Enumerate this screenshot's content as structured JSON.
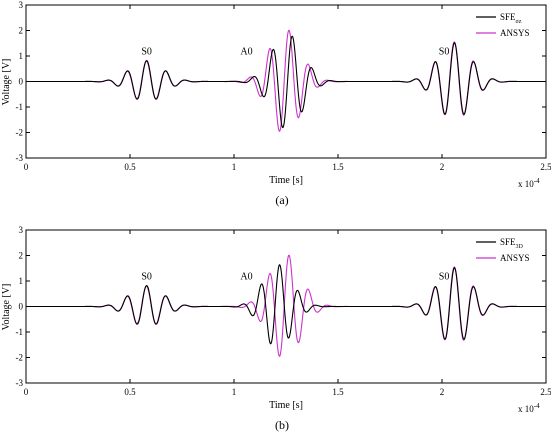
{
  "figure": {
    "panels": [
      {
        "caption": "(a)"
      },
      {
        "caption": "(b)"
      }
    ]
  },
  "chart_data": [
    {
      "type": "line",
      "panel": "(a)",
      "xlabel": "Time [s]",
      "ylabel": "Voltage [V]",
      "x_multiplier_label": "x 10",
      "x_multiplier_exp": "-4",
      "xlim": [
        0,
        2.5
      ],
      "ylim": [
        -3,
        3
      ],
      "xticks": [
        "0",
        "0.5",
        "1",
        "1.5",
        "2",
        "2.5"
      ],
      "yticks": [
        "-3",
        "-2",
        "-1",
        "0",
        "1",
        "2",
        "3"
      ],
      "annotations": [
        {
          "text": "S0",
          "x": 0.58,
          "y": 1.05
        },
        {
          "text": "A0",
          "x": 1.06,
          "y": 1.05
        },
        {
          "text": "S0",
          "x": 2.01,
          "y": 1.05
        }
      ],
      "legend": {
        "position": "top-right",
        "entries": [
          {
            "main": "SFE",
            "sub": "σz",
            "color": "#000000"
          },
          {
            "main": "ANSYS",
            "sub": "",
            "color": "#cc33cc"
          }
        ]
      },
      "series": [
        {
          "name": "SFE σz",
          "color": "#000000",
          "packets": [
            {
              "center": 0.58,
              "freq": 10.6,
              "amp": 0.82,
              "width": 0.16,
              "phase": 1.57
            },
            {
              "center": 1.255,
              "freq": 10.6,
              "amp": 1.88,
              "width": 0.15,
              "phase": -0.15
            },
            {
              "center": 2.06,
              "freq": 10.6,
              "amp": 1.52,
              "width": 0.16,
              "phase": 1.57
            }
          ]
        },
        {
          "name": "ANSYS",
          "color": "#cc33cc",
          "packets": [
            {
              "center": 0.58,
              "freq": 10.6,
              "amp": 0.8,
              "width": 0.16,
              "phase": 1.65
            },
            {
              "center": 1.245,
              "freq": 10.6,
              "amp": 2.08,
              "width": 0.15,
              "phase": 0.25
            },
            {
              "center": 2.06,
              "freq": 10.6,
              "amp": 1.55,
              "width": 0.16,
              "phase": 1.65
            }
          ]
        }
      ]
    },
    {
      "type": "line",
      "panel": "(b)",
      "xlabel": "Time [s]",
      "ylabel": "Voltage [V]",
      "x_multiplier_label": "x 10",
      "x_multiplier_exp": "-4",
      "xlim": [
        0,
        2.5
      ],
      "ylim": [
        -3,
        3
      ],
      "xticks": [
        "0",
        "0.5",
        "1",
        "1.5",
        "2",
        "2.5"
      ],
      "yticks": [
        "-3",
        "-2",
        "-1",
        "0",
        "1",
        "2",
        "3"
      ],
      "annotations": [
        {
          "text": "S0",
          "x": 0.58,
          "y": 1.05
        },
        {
          "text": "A0",
          "x": 1.06,
          "y": 1.05
        },
        {
          "text": "S0",
          "x": 2.01,
          "y": 1.05
        }
      ],
      "legend": {
        "position": "top-right",
        "entries": [
          {
            "main": "SFE",
            "sub": "3D",
            "color": "#000000"
          },
          {
            "main": "ANSYS",
            "sub": "",
            "color": "#cc33cc"
          }
        ]
      },
      "series": [
        {
          "name": "SFE 3D",
          "color": "#000000",
          "packets": [
            {
              "center": 0.58,
              "freq": 10.6,
              "amp": 0.82,
              "width": 0.16,
              "phase": 1.57
            },
            {
              "center": 1.21,
              "freq": 11.2,
              "amp": 1.65,
              "width": 0.14,
              "phase": 0.9
            },
            {
              "center": 2.06,
              "freq": 10.6,
              "amp": 1.52,
              "width": 0.16,
              "phase": 1.57
            }
          ]
        },
        {
          "name": "ANSYS",
          "color": "#cc33cc",
          "packets": [
            {
              "center": 0.58,
              "freq": 10.6,
              "amp": 0.8,
              "width": 0.16,
              "phase": 1.65
            },
            {
              "center": 1.245,
              "freq": 10.6,
              "amp": 2.08,
              "width": 0.15,
              "phase": 0.25
            },
            {
              "center": 2.06,
              "freq": 10.6,
              "amp": 1.55,
              "width": 0.16,
              "phase": 1.65
            }
          ]
        }
      ]
    }
  ]
}
